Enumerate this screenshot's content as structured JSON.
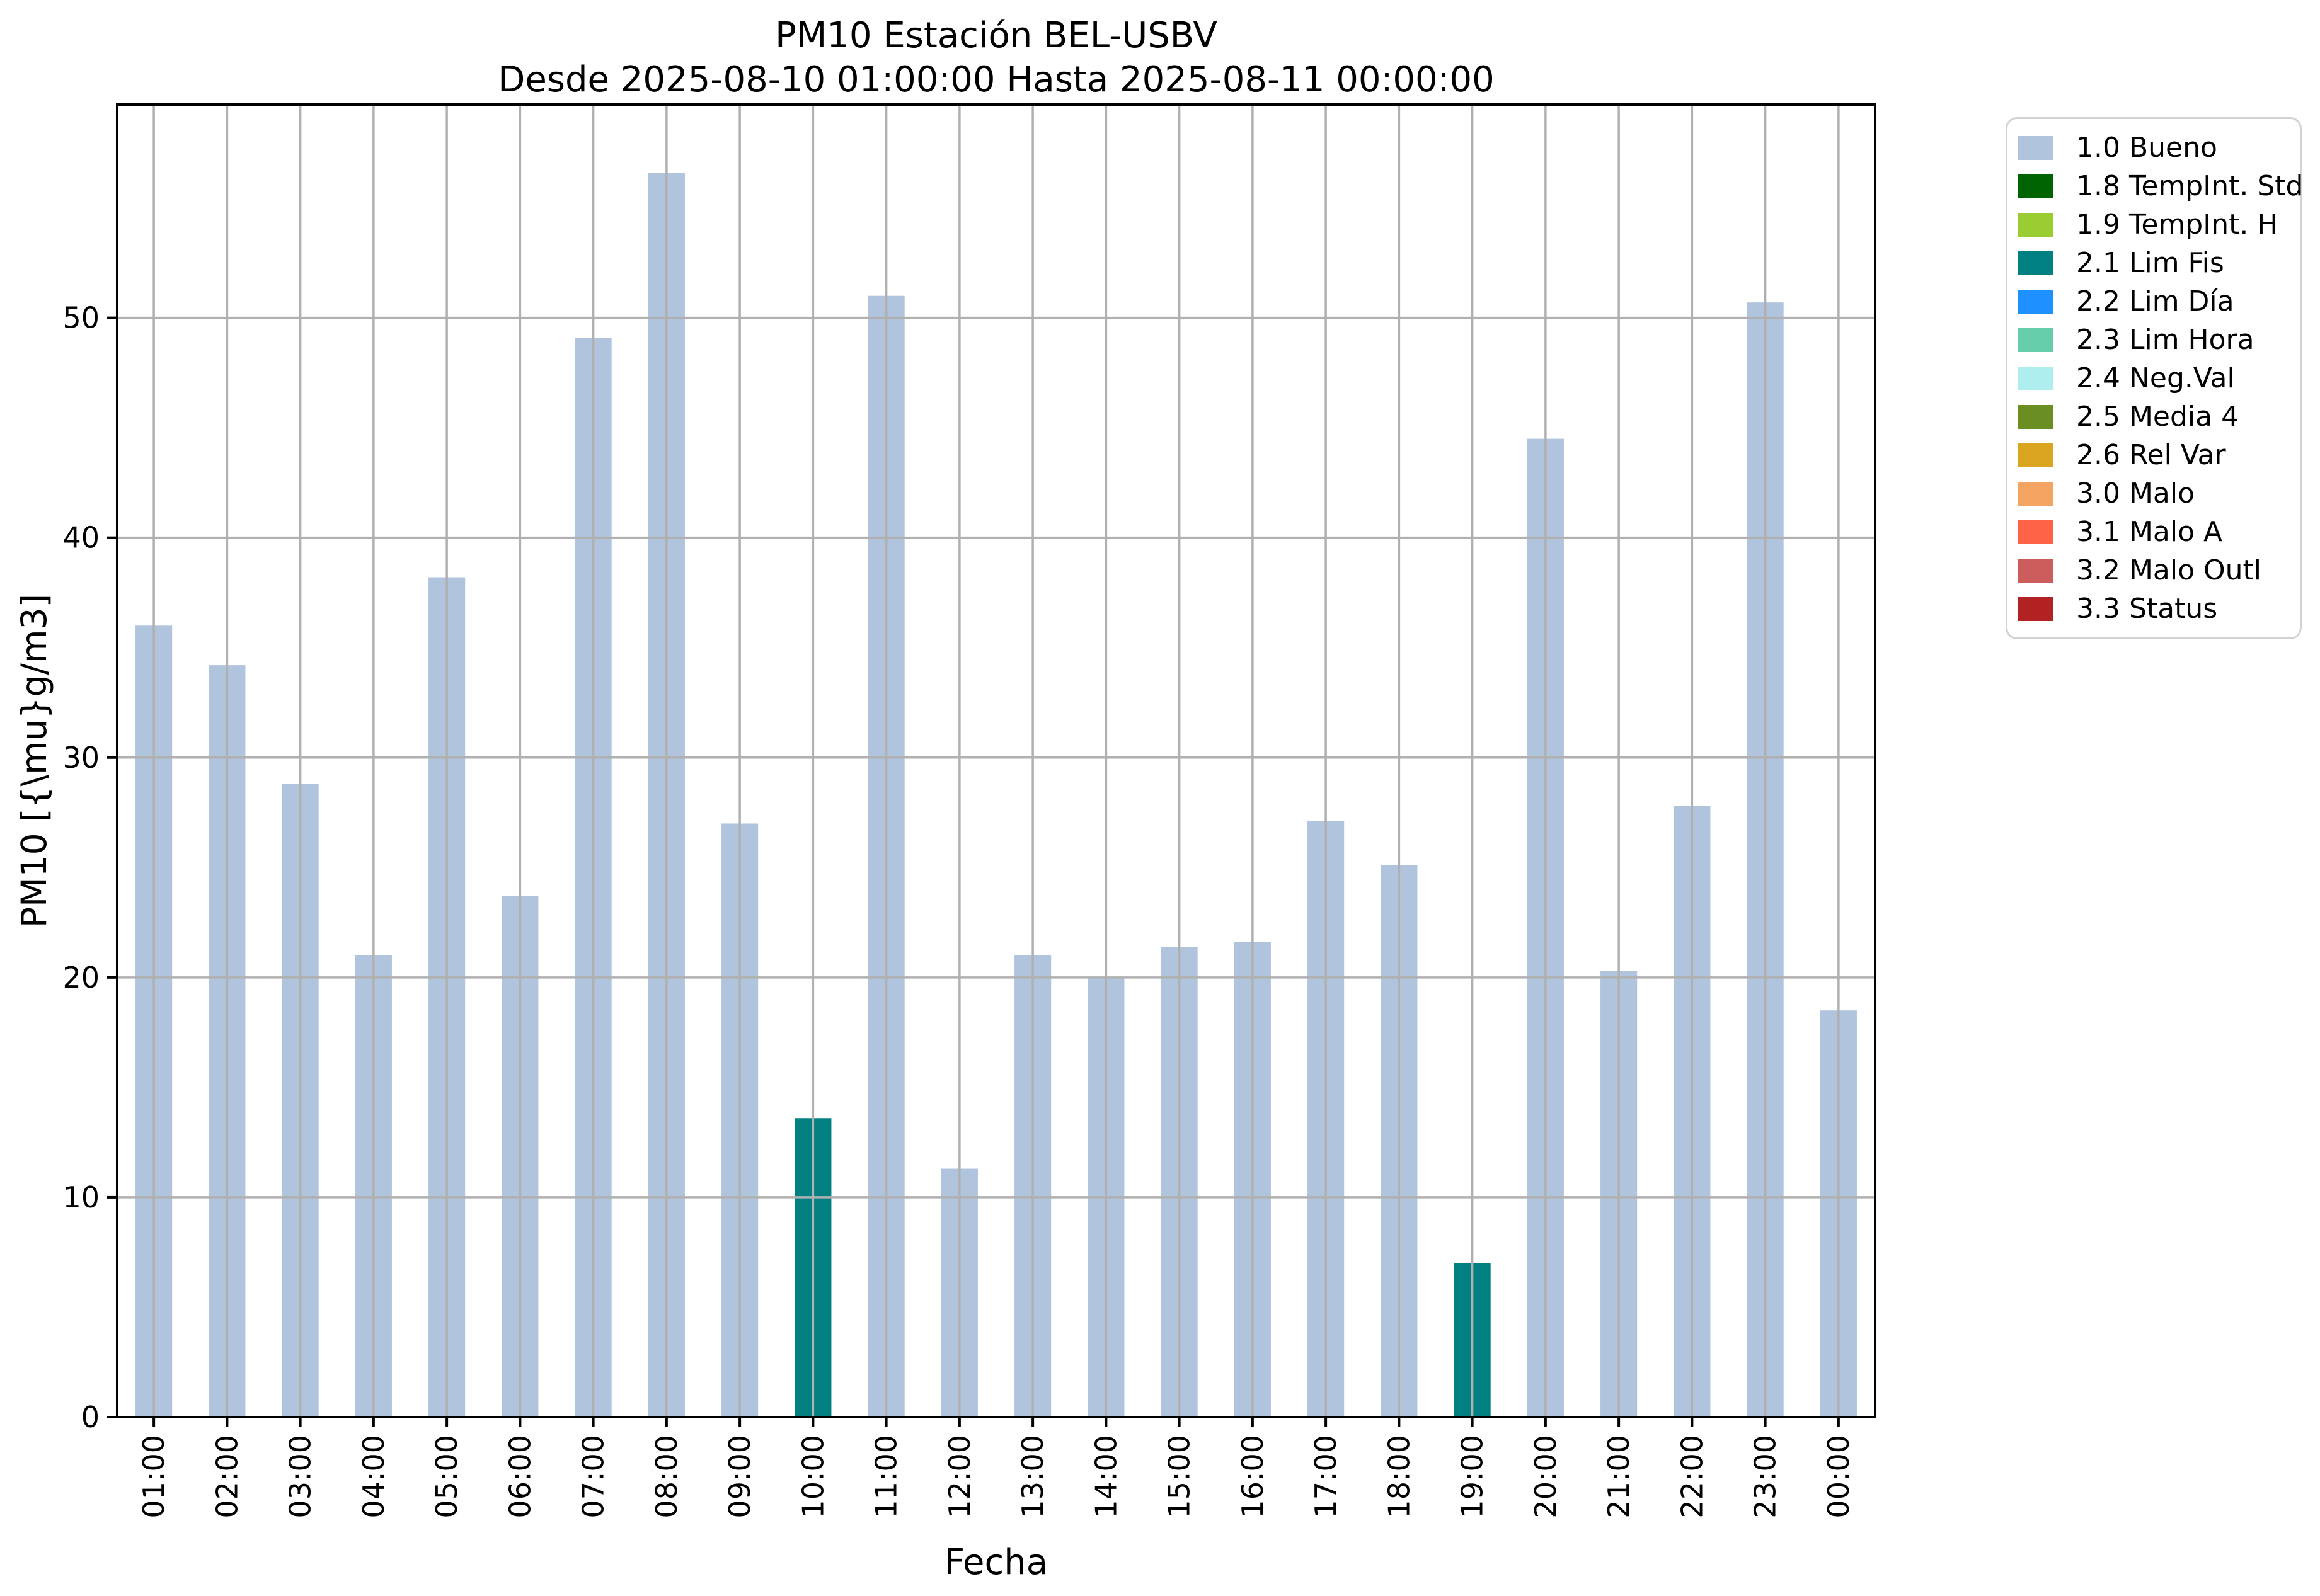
{
  "chart_data": {
    "type": "bar",
    "title": "PM10 Estación BEL-USBV",
    "subtitle": "Desde 2025-08-10 01:00:00 Hasta 2025-08-11 00:00:00",
    "xlabel": "Fecha",
    "ylabel": "PM10 [{\\mu}g/m3]",
    "categories": [
      "01:00",
      "02:00",
      "03:00",
      "04:00",
      "05:00",
      "06:00",
      "07:00",
      "08:00",
      "09:00",
      "10:00",
      "11:00",
      "12:00",
      "13:00",
      "14:00",
      "15:00",
      "16:00",
      "17:00",
      "18:00",
      "19:00",
      "20:00",
      "21:00",
      "22:00",
      "23:00",
      "00:00"
    ],
    "values": [
      36.0,
      34.2,
      28.8,
      21.0,
      38.2,
      23.7,
      49.1,
      56.6,
      27.0,
      13.6,
      51.0,
      11.3,
      21.0,
      20.0,
      21.4,
      21.6,
      27.1,
      25.1,
      7.0,
      44.5,
      20.3,
      27.8,
      50.7,
      18.5
    ],
    "statuses": [
      "1.0 Bueno",
      "1.0 Bueno",
      "1.0 Bueno",
      "1.0 Bueno",
      "1.0 Bueno",
      "1.0 Bueno",
      "1.0 Bueno",
      "1.0 Bueno",
      "1.0 Bueno",
      "2.1 Lim Fis",
      "1.0 Bueno",
      "1.0 Bueno",
      "1.0 Bueno",
      "1.0 Bueno",
      "1.0 Bueno",
      "1.0 Bueno",
      "1.0 Bueno",
      "1.0 Bueno",
      "2.1 Lim Fis",
      "1.0 Bueno",
      "1.0 Bueno",
      "1.0 Bueno",
      "1.0 Bueno",
      "1.0 Bueno"
    ],
    "yticks": [
      0,
      10,
      20,
      30,
      40,
      50
    ],
    "ylim": [
      0,
      59.7
    ],
    "grid": true,
    "grid_color": "#b0b0b0",
    "spine_color": "#000000",
    "bar_width_fraction": 0.5,
    "legend_position": "outside-upper-right",
    "legend": [
      {
        "label": "1.0 Bueno",
        "color": "#b0c4de"
      },
      {
        "label": "1.8 TempInt. Std",
        "color": "#006400"
      },
      {
        "label": "1.9 TempInt. H",
        "color": "#9acd32"
      },
      {
        "label": "2.1 Lim Fis",
        "color": "#008080"
      },
      {
        "label": "2.2 Lim Día",
        "color": "#1e90ff"
      },
      {
        "label": "2.3 Lim Hora",
        "color": "#66cdaa"
      },
      {
        "label": "2.4 Neg.Val",
        "color": "#afeeee"
      },
      {
        "label": "2.5 Media 4",
        "color": "#6b8e23"
      },
      {
        "label": "2.6 Rel Var",
        "color": "#daa520"
      },
      {
        "label": "3.0 Malo",
        "color": "#f4a460"
      },
      {
        "label": "3.1 Malo A",
        "color": "#ff6347"
      },
      {
        "label": "3.2 Malo Outl",
        "color": "#cd5c5c"
      },
      {
        "label": "3.3 Status",
        "color": "#b22222"
      }
    ]
  }
}
